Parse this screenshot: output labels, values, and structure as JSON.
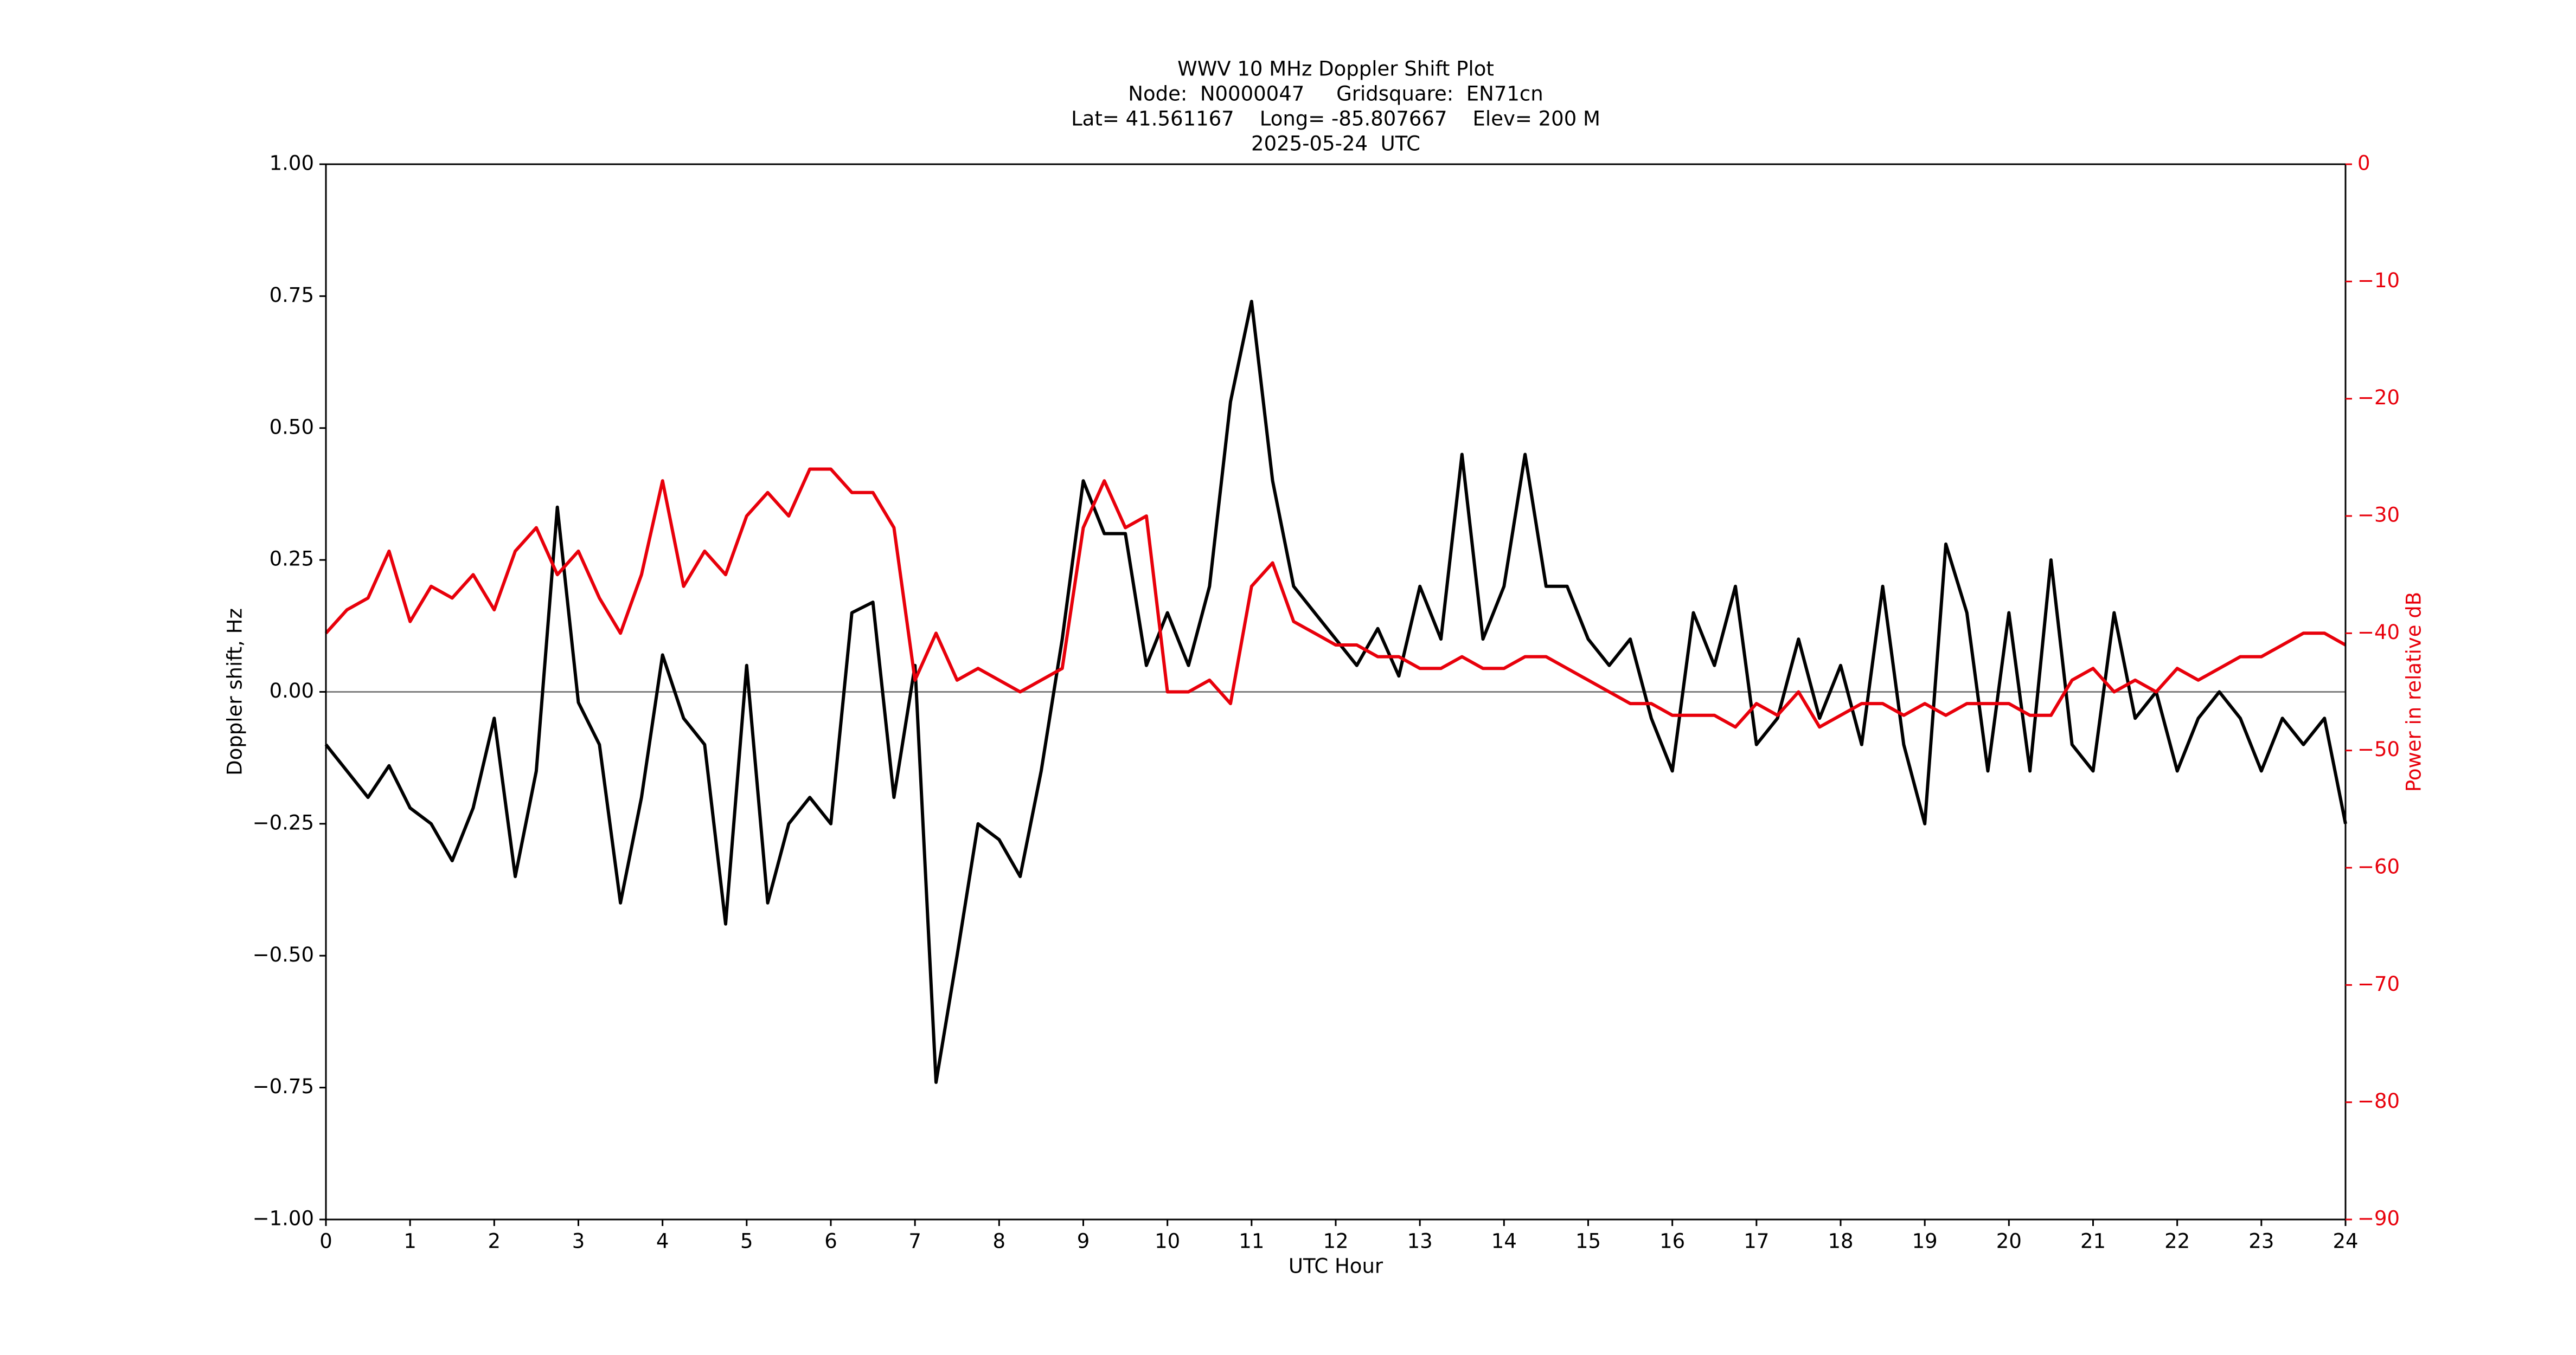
{
  "chart_data": {
    "type": "line",
    "title": [
      "WWV 10 MHz Doppler Shift Plot",
      "Node:  N0000047     Gridsquare:  EN71cn",
      "Lat= 41.561167    Long= -85.807667    Elev= 200 M",
      "2025-05-24  UTC"
    ],
    "x_label": "UTC Hour",
    "y_label": "Doppler shift, Hz",
    "y2_label": "Power in relative dB",
    "y2_color": "#e8000b",
    "hline": 0,
    "x": [
      0,
      0.25,
      0.5,
      0.75,
      1,
      1.25,
      1.5,
      1.75,
      2,
      2.25,
      2.5,
      2.75,
      3,
      3.25,
      3.5,
      3.75,
      4,
      4.25,
      4.5,
      4.75,
      5,
      5.25,
      5.5,
      5.75,
      6,
      6.25,
      6.5,
      6.75,
      7,
      7.25,
      7.5,
      7.75,
      8,
      8.25,
      8.5,
      8.75,
      9,
      9.25,
      9.5,
      9.75,
      10,
      10.25,
      10.5,
      10.75,
      11,
      11.25,
      11.5,
      11.75,
      12,
      12.25,
      12.5,
      12.75,
      13,
      13.25,
      13.5,
      13.75,
      14,
      14.25,
      14.5,
      14.75,
      15,
      15.25,
      15.5,
      15.75,
      16,
      16.25,
      16.5,
      16.75,
      17,
      17.25,
      17.5,
      17.75,
      18,
      18.25,
      18.5,
      18.75,
      19,
      19.25,
      19.5,
      19.75,
      20,
      20.25,
      20.5,
      20.75,
      21,
      21.25,
      21.5,
      21.75,
      22,
      22.25,
      22.5,
      22.75,
      23,
      23.25,
      23.5,
      23.75,
      24
    ],
    "series": [
      {
        "color": "#000000",
        "values": [
          -0.1,
          -0.15,
          -0.2,
          -0.14,
          -0.22,
          -0.25,
          -0.32,
          -0.22,
          -0.05,
          -0.35,
          -0.15,
          0.35,
          -0.02,
          -0.1,
          -0.4,
          -0.2,
          0.07,
          -0.05,
          -0.1,
          -0.44,
          0.05,
          -0.4,
          -0.25,
          -0.2,
          -0.25,
          0.15,
          0.17,
          -0.2,
          0.05,
          -0.74,
          -0.5,
          -0.25,
          -0.28,
          -0.35,
          -0.15,
          0.1,
          0.4,
          0.3,
          0.3,
          0.05,
          0.15,
          0.05,
          0.2,
          0.55,
          0.74,
          0.4,
          0.2,
          0.15,
          0.1,
          0.05,
          0.12,
          0.03,
          0.2,
          0.1,
          0.45,
          0.1,
          0.2,
          0.45,
          0.2,
          0.2,
          0.1,
          0.05,
          0.1,
          -0.05,
          -0.15,
          0.15,
          0.05,
          0.2,
          -0.1,
          -0.05,
          0.1,
          -0.05,
          0.05,
          -0.1,
          0.2,
          -0.1,
          -0.25,
          0.28,
          0.15,
          -0.15,
          0.15,
          -0.15,
          0.25,
          -0.1,
          -0.15,
          0.15,
          -0.05,
          0.0,
          -0.15,
          -0.05,
          0.0,
          -0.05,
          -0.15,
          -0.05,
          -0.1,
          -0.05,
          -0.25
        ]
      },
      {
        "color": "#e8000b",
        "axis": "y2",
        "values": [
          -40,
          -38,
          -37,
          -33,
          -39,
          -36,
          -37,
          -35,
          -38,
          -33,
          -31,
          -35,
          -33,
          -37,
          -40,
          -35,
          -27,
          -36,
          -33,
          -35,
          -30,
          -28,
          -30,
          -26,
          -26,
          -28,
          -28,
          -31,
          -44,
          -40,
          -44,
          -43,
          -44,
          -45,
          -44,
          -43,
          -31,
          -27,
          -31,
          -30,
          -45,
          -45,
          -44,
          -46,
          -36,
          -34,
          -39,
          -40,
          -41,
          -41,
          -42,
          -42,
          -43,
          -43,
          -42,
          -43,
          -43,
          -42,
          -42,
          -43,
          -44,
          -45,
          -46,
          -46,
          -47,
          -47,
          -47,
          -48,
          -46,
          -47,
          -45,
          -48,
          -47,
          -46,
          -46,
          -47,
          -46,
          -47,
          -46,
          -46,
          -46,
          -47,
          -47,
          -44,
          -43,
          -45,
          -44,
          -45,
          -43,
          -44,
          -43,
          -42,
          -42,
          -41,
          -40,
          -40,
          -41
        ]
      }
    ],
    "xlim": [
      0,
      24
    ],
    "xticks": [
      0,
      1,
      2,
      3,
      4,
      5,
      6,
      7,
      8,
      9,
      10,
      11,
      12,
      13,
      14,
      15,
      16,
      17,
      18,
      19,
      20,
      21,
      22,
      23,
      24
    ],
    "ylim": [
      -1,
      1
    ],
    "yticks": [
      {
        "value": -1,
        "label": "−1.00"
      },
      {
        "value": -0.75,
        "label": "−0.75"
      },
      {
        "value": -0.5,
        "label": "−0.50"
      },
      {
        "value": -0.25,
        "label": "−0.25"
      },
      {
        "value": 0,
        "label": "0.00"
      },
      {
        "value": 0.25,
        "label": "0.25"
      },
      {
        "value": 0.5,
        "label": "0.50"
      },
      {
        "value": 0.75,
        "label": "0.75"
      },
      {
        "value": 1,
        "label": "1.00"
      }
    ],
    "y2lim": [
      -90,
      0
    ],
    "y2ticks": [
      {
        "value": -90,
        "label": "−90"
      },
      {
        "value": -80,
        "label": "−80"
      },
      {
        "value": -70,
        "label": "−70"
      },
      {
        "value": -60,
        "label": "−60"
      },
      {
        "value": -50,
        "label": "−50"
      },
      {
        "value": -40,
        "label": "−40"
      },
      {
        "value": -30,
        "label": "−30"
      },
      {
        "value": -20,
        "label": "−20"
      },
      {
        "value": -10,
        "label": "−10"
      },
      0
    ]
  }
}
